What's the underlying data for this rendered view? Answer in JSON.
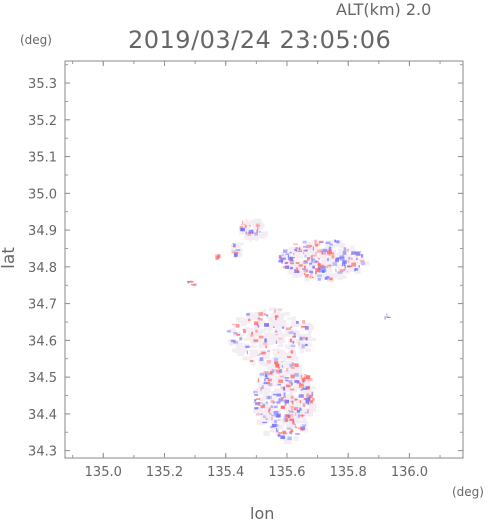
{
  "header": {
    "altitude_label": "ALT(km) 2.0",
    "timestamp": "2019/03/24 23:05:06"
  },
  "axes": {
    "y_unit": "(deg)",
    "x_unit": "(deg)",
    "y_label": "lat",
    "x_label": "lon"
  },
  "chart_data": {
    "type": "heatmap",
    "xlabel": "lon",
    "ylabel": "lat",
    "xlim": [
      134.875,
      136.175
    ],
    "ylim": [
      34.28,
      35.36
    ],
    "x_ticks": [
      "135.0",
      "135.2",
      "135.4",
      "135.6",
      "135.8",
      "136.0"
    ],
    "y_ticks": [
      "34.3",
      "34.4",
      "34.5",
      "34.6",
      "34.7",
      "34.8",
      "34.9",
      "35.0",
      "35.1",
      "35.2",
      "35.3"
    ],
    "grid": false,
    "colors": {
      "positive": "#ff6b6b",
      "negative": "#6b6bff",
      "near_zero": "#f4eef4",
      "frame": "#888888"
    }
  }
}
